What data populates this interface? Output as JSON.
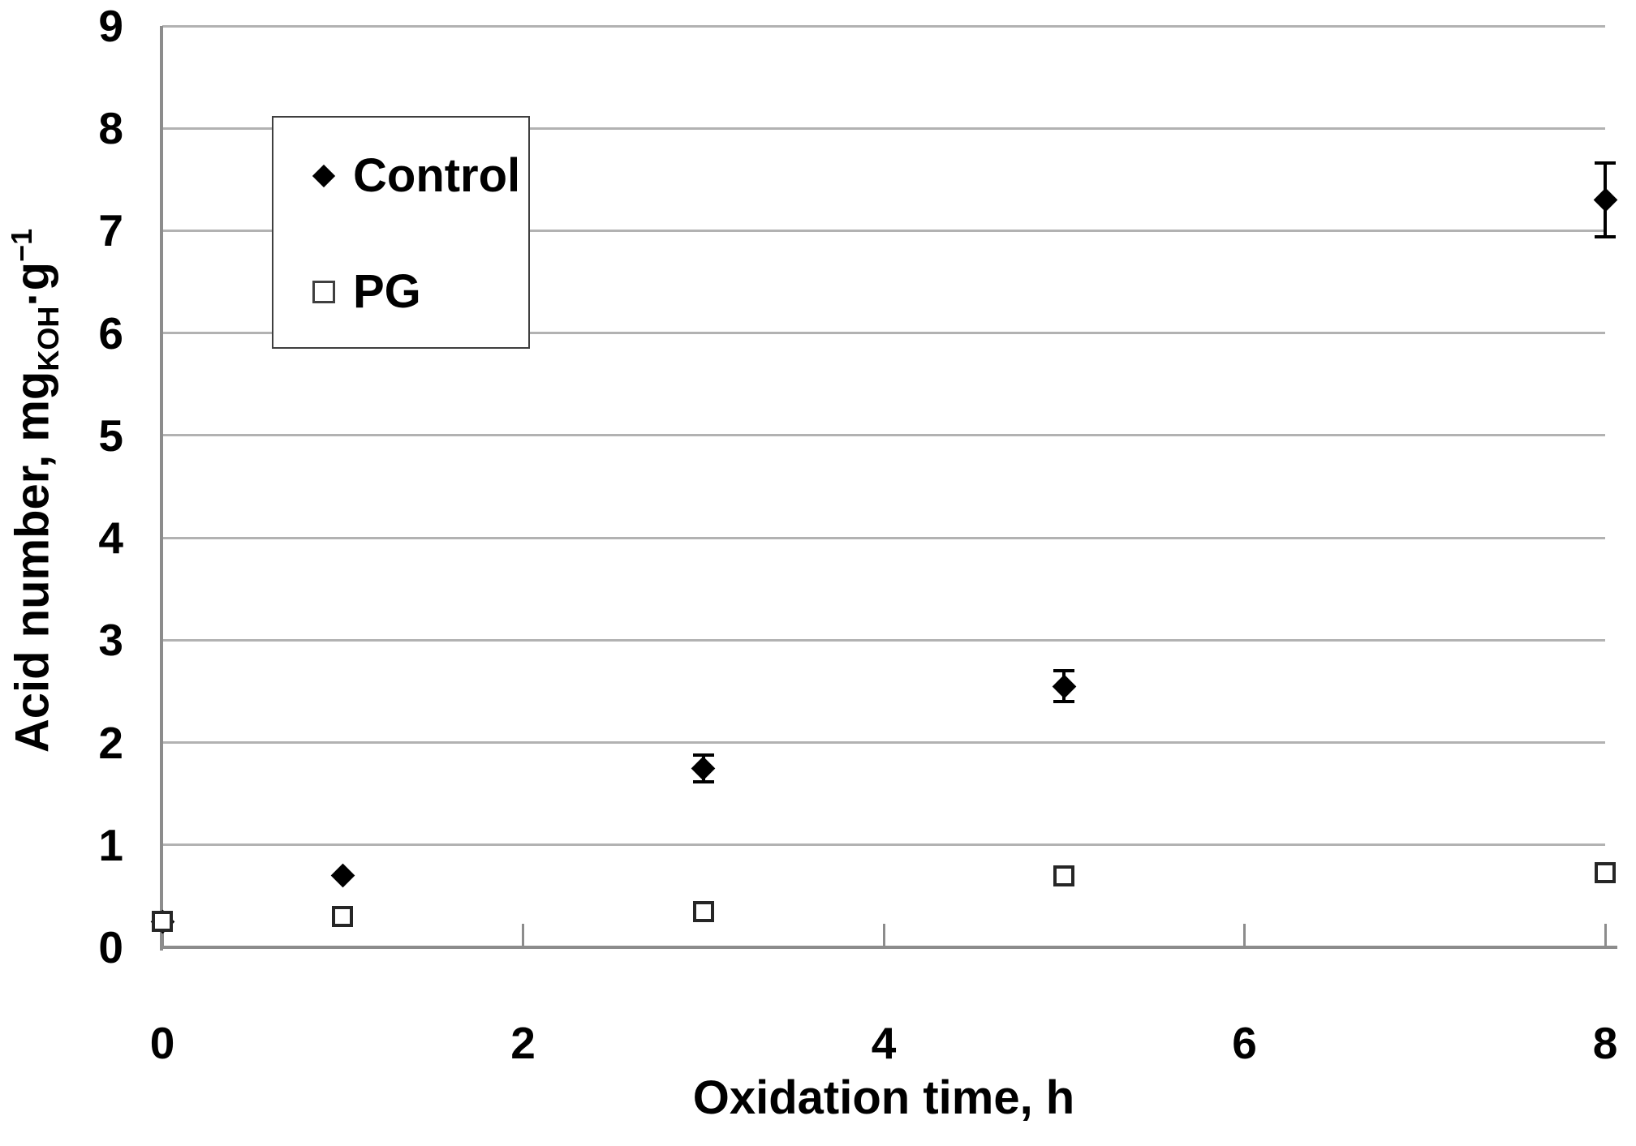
{
  "chart_data": {
    "type": "scatter",
    "xlabel": "Oxidation time, h",
    "ylabel": {
      "main": "Acid number, mg",
      "sub": "KOH",
      "mid": "·g",
      "sup": "−1"
    },
    "xlim": [
      0,
      8
    ],
    "ylim": [
      0,
      9
    ],
    "xticks": [
      "0",
      "2",
      "4",
      "6",
      "8"
    ],
    "yticks": [
      "0",
      "1",
      "2",
      "3",
      "4",
      "5",
      "6",
      "7",
      "8",
      "9"
    ],
    "grid": "horizontal-gridlines-on",
    "legend_position": "inside-top-left",
    "colors": {
      "marker": "#000000",
      "gridline": "#b2b2b2",
      "axis": "#8c8c8c",
      "legend_border": "#3f3f3f"
    },
    "series": [
      {
        "name": "Control",
        "marker": "filled-diamond",
        "points": [
          {
            "x": 0,
            "y": 0.25
          },
          {
            "x": 1,
            "y": 0.7
          },
          {
            "x": 3,
            "y": 1.75,
            "yerr": 0.13
          },
          {
            "x": 5,
            "y": 2.55,
            "yerr": 0.15
          },
          {
            "x": 8,
            "y": 7.3,
            "yerr": 0.36
          }
        ]
      },
      {
        "name": "PG",
        "marker": "open-square",
        "points": [
          {
            "x": 0,
            "y": 0.25
          },
          {
            "x": 1,
            "y": 0.3
          },
          {
            "x": 3,
            "y": 0.35
          },
          {
            "x": 5,
            "y": 0.7
          },
          {
            "x": 8,
            "y": 0.73
          }
        ]
      }
    ]
  }
}
